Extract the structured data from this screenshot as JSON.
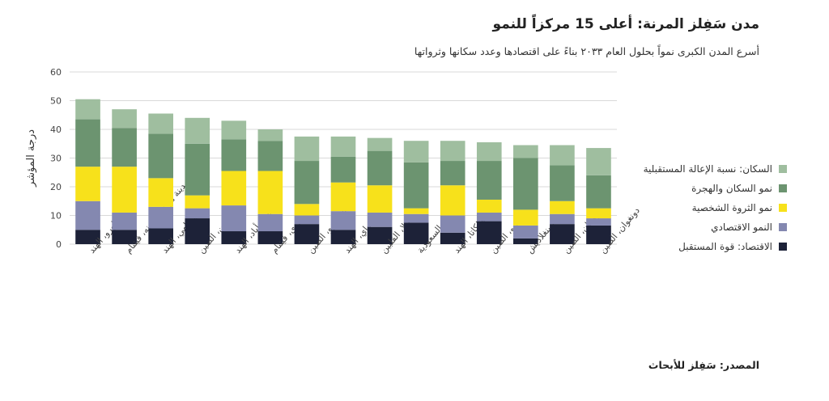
{
  "header": {
    "title": "مدن سَفِلز المرنة: أعلى 15 مركزاً للنمو",
    "subtitle": "أسرع المدن الكبرى نمواً بحلول العام ٢٠٣٣ بناءً على اقتصادها وعدد سكانها وثرواتها"
  },
  "footer": {
    "source": "المصدر: سَفِلز للأبحاث"
  },
  "legend": [
    {
      "label": "السكان: نسبة الإعالة المستقبلية",
      "color": "#9fbe9f"
    },
    {
      "label": "نمو السكان والهجرة",
      "color": "#6c9470"
    },
    {
      "label": "نمو الثروة الشخصية",
      "color": "#f7e11b"
    },
    {
      "label": "النمو الاقتصادي",
      "color": "#8488b0"
    },
    {
      "label": "الاقتصاد: قوة المستقبل",
      "color": "#1d2238"
    }
  ],
  "chart_data": {
    "type": "bar",
    "stacked": true,
    "ylabel": "درجة المؤشر",
    "ylim": [
      0,
      60
    ],
    "yticks": [
      0,
      10,
      20,
      30,
      40,
      50,
      60
    ],
    "grid": true,
    "legend_position": "right",
    "categories": [
      "بنغالورو، الهند",
      "مدينة هو تشي منه، فيتنام",
      "نيودلهي، الهند",
      "شنزين، الصين",
      "حيدر أباد، الهند",
      "هانوي، فيتنام",
      "غوانغزو، الصين",
      "مومباي، الهند",
      "مانيلا، الفلبين",
      "الرياض، السعودية",
      "كولكاتا، الهند",
      "سوتشو، الصين",
      "دكا، بنغلاديش",
      "ووهان، الصين",
      "دونغوان، الصين"
    ],
    "series": [
      {
        "name": "الاقتصاد: قوة المستقبل",
        "color": "#1d2238",
        "values": [
          5,
          5,
          5.5,
          9,
          4.5,
          4.5,
          7,
          5,
          6,
          7.5,
          4,
          8,
          2,
          7,
          6.5
        ]
      },
      {
        "name": "النمو الاقتصادي",
        "color": "#8488b0",
        "values": [
          10,
          6,
          7.5,
          3.5,
          9,
          6,
          3,
          6.5,
          5,
          3,
          6,
          3,
          4.5,
          3.5,
          2.5
        ]
      },
      {
        "name": "نمو الثروة الشخصية",
        "color": "#f7e11b",
        "values": [
          12,
          16,
          10,
          4.5,
          12,
          15,
          4,
          10,
          9.5,
          2,
          10.5,
          4.5,
          5.5,
          4.5,
          3.5
        ]
      },
      {
        "name": "نمو السكان والهجرة",
        "color": "#6c9470",
        "values": [
          16.5,
          13.5,
          15.5,
          18,
          11,
          10.5,
          15,
          9,
          12,
          16,
          8.5,
          13.5,
          18,
          12.5,
          11.5
        ]
      },
      {
        "name": "السكان: نسبة الإعالة المستقبلية",
        "color": "#9fbe9f",
        "values": [
          7,
          6.5,
          7,
          9,
          6.5,
          4,
          8.5,
          7,
          4.5,
          7.5,
          7,
          6.5,
          4.5,
          7,
          9.5
        ]
      }
    ]
  }
}
